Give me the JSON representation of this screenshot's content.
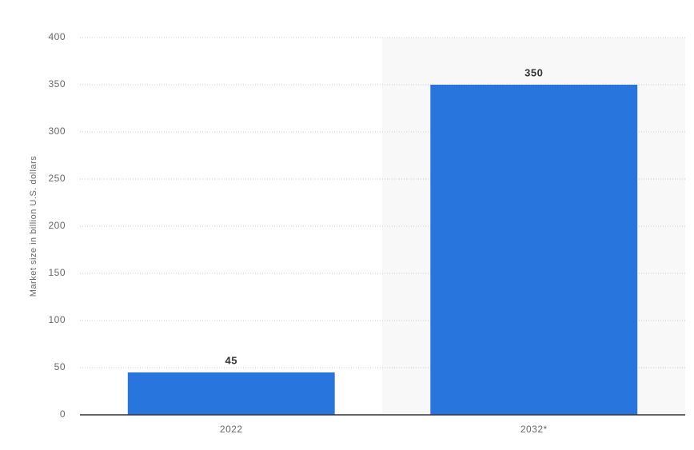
{
  "chart_data": {
    "type": "bar",
    "y_label": "Market size in billion U.S. dollars",
    "categories": [
      "2022",
      "2032*"
    ],
    "values": [
      45,
      350
    ],
    "color": "#2876dd",
    "ylim": [
      0,
      400
    ],
    "yticks": [
      0,
      50,
      100,
      150,
      200,
      250,
      300,
      350,
      400
    ],
    "grid": true
  }
}
